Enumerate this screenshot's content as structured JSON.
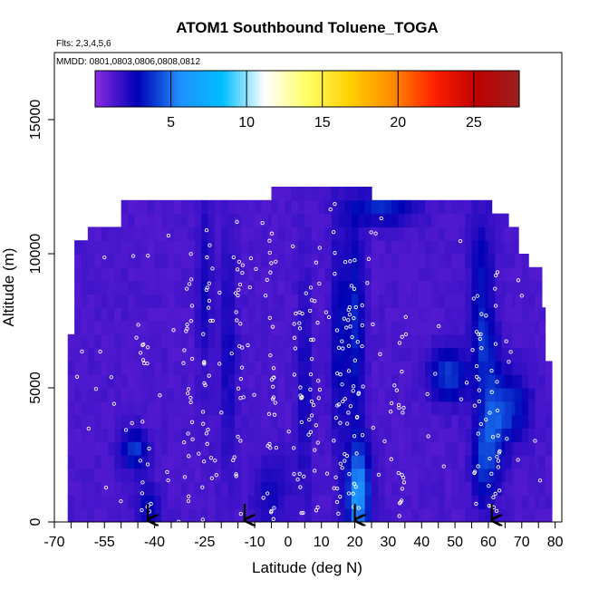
{
  "chart_data": {
    "type": "heatmap",
    "title": "ATOM1 Southbound Toluene_TOGA",
    "subtitle_flights": "Flts: 2,3,4,5,6",
    "subtitle_dates": "MMDD: 0801,0803,0806,0808,0812",
    "xlabel": "Latitude (deg N)",
    "ylabel": "Altitude (m)",
    "xlim": [
      -70,
      82
    ],
    "ylim": [
      0,
      17500
    ],
    "x_ticks": [
      -70,
      -55,
      -40,
      -25,
      -10,
      0,
      10,
      20,
      30,
      40,
      50,
      60,
      70,
      80
    ],
    "x_tick_labels": [
      "-70",
      "-55",
      "-40",
      "-25",
      "-10",
      "0",
      "10",
      "20",
      "30",
      "40",
      "50",
      "60",
      "70",
      "80"
    ],
    "x_minor_step": 5,
    "y_ticks": [
      0,
      5000,
      10000,
      15000
    ],
    "y_tick_labels": [
      "0",
      "5000",
      "10000",
      "15000"
    ],
    "colorbar": {
      "min": 0,
      "max": 28,
      "ticks": [
        5,
        10,
        15,
        20,
        25
      ],
      "tick_labels": [
        "5",
        "10",
        "15",
        "20",
        "25"
      ],
      "colors": [
        "#8a2be2",
        "#0000b4",
        "#1e90ff",
        "#00bfff",
        "#ffffff",
        "#ffff66",
        "#ffd000",
        "#ff8c00",
        "#ff2000",
        "#c00000",
        "#9b2020"
      ]
    },
    "background_value": 1.3,
    "coverage": [
      {
        "lat_from": -66,
        "lat_to": -64,
        "alt_top": 7000
      },
      {
        "lat_from": -64,
        "lat_to": -60,
        "alt_top": 10500
      },
      {
        "lat_from": -60,
        "lat_to": -58,
        "alt_top": 10800
      },
      {
        "lat_from": -58,
        "lat_to": -50,
        "alt_top": 11000
      },
      {
        "lat_from": -50,
        "lat_to": -30,
        "alt_top": 11700
      },
      {
        "lat_from": -30,
        "lat_to": -5,
        "alt_top": 12000
      },
      {
        "lat_from": -5,
        "lat_to": 25,
        "alt_top": 12500
      },
      {
        "lat_from": 25,
        "lat_to": 45,
        "alt_top": 12000
      },
      {
        "lat_from": 45,
        "lat_to": 60,
        "alt_top": 11700
      },
      {
        "lat_from": 60,
        "lat_to": 65,
        "alt_top": 11300
      },
      {
        "lat_from": 65,
        "lat_to": 68,
        "alt_top": 10700
      },
      {
        "lat_from": 68,
        "lat_to": 72,
        "alt_top": 10000
      },
      {
        "lat_from": 72,
        "lat_to": 75,
        "alt_top": 9500
      },
      {
        "lat_from": 75,
        "lat_to": 77,
        "alt_top": 7600
      },
      {
        "lat_from": 77,
        "lat_to": 79,
        "alt_top": 5800
      }
    ],
    "features": [
      {
        "lat": -46,
        "alt": 2700,
        "sigma_lat": 3,
        "sigma_alt": 500,
        "value": 4.0
      },
      {
        "lat": -42,
        "alt": 600,
        "sigma_lat": 2.5,
        "sigma_alt": 600,
        "value": 3.0
      },
      {
        "lat": -25,
        "alt": 9000,
        "sigma_lat": 1.5,
        "sigma_alt": 2500,
        "value": 2.5
      },
      {
        "lat": -18,
        "alt": 6500,
        "sigma_lat": 2,
        "sigma_alt": 3000,
        "value": 2.5
      },
      {
        "lat": -5,
        "alt": 1200,
        "sigma_lat": 4,
        "sigma_alt": 900,
        "value": 2.5
      },
      {
        "lat": 5,
        "alt": 5000,
        "sigma_lat": 1.5,
        "sigma_alt": 3000,
        "value": 2.5
      },
      {
        "lat": 15,
        "alt": 7000,
        "sigma_lat": 1.5,
        "sigma_alt": 3000,
        "value": 3.0
      },
      {
        "lat": 20,
        "alt": 7500,
        "sigma_lat": 2,
        "sigma_alt": 2500,
        "value": 3.5
      },
      {
        "lat": 21,
        "alt": 1000,
        "sigma_lat": 2.5,
        "sigma_alt": 1400,
        "value": 6.0
      },
      {
        "lat": 28,
        "alt": 11700,
        "sigma_lat": 7,
        "sigma_alt": 400,
        "value": 3.5
      },
      {
        "lat": 48,
        "alt": 5500,
        "sigma_lat": 4,
        "sigma_alt": 700,
        "value": 4.0
      },
      {
        "lat": 58,
        "alt": 9000,
        "sigma_lat": 2.5,
        "sigma_alt": 1800,
        "value": 3.0
      },
      {
        "lat": 61,
        "alt": 3500,
        "sigma_lat": 3,
        "sigma_alt": 1500,
        "value": 4.0
      },
      {
        "lat": 59,
        "alt": 6500,
        "sigma_lat": 2.5,
        "sigma_alt": 1000,
        "value": 3.0
      },
      {
        "lat": 67,
        "alt": 4300,
        "sigma_lat": 4,
        "sigma_alt": 900,
        "value": 3.5
      },
      {
        "lat": 58,
        "alt": 2000,
        "sigma_lat": 2,
        "sigma_alt": 1000,
        "value": 3.0
      }
    ],
    "sample_columns": [
      {
        "lat": -43,
        "alt_min": 200,
        "alt_max": 7000
      },
      {
        "lat": -30,
        "alt_min": 200,
        "alt_max": 10000
      },
      {
        "lat": -24,
        "alt_min": 200,
        "alt_max": 11000
      },
      {
        "lat": -15,
        "alt_min": 200,
        "alt_max": 10000
      },
      {
        "lat": -5,
        "alt_min": 200,
        "alt_max": 10800
      },
      {
        "lat": 3,
        "alt_min": 200,
        "alt_max": 9000
      },
      {
        "lat": 8,
        "alt_min": 200,
        "alt_max": 10500
      },
      {
        "lat": 15,
        "alt_min": 200,
        "alt_max": 10200
      },
      {
        "lat": 18,
        "alt_min": 200,
        "alt_max": 10100
      },
      {
        "lat": 21,
        "alt_min": 200,
        "alt_max": 10000
      },
      {
        "lat": 34,
        "alt_min": 200,
        "alt_max": 8000
      },
      {
        "lat": 57,
        "alt_min": 200,
        "alt_max": 8500
      },
      {
        "lat": 62,
        "alt_min": 200,
        "alt_max": 9500
      }
    ],
    "arrows_lat": [
      -42,
      -13,
      20,
      61
    ]
  }
}
